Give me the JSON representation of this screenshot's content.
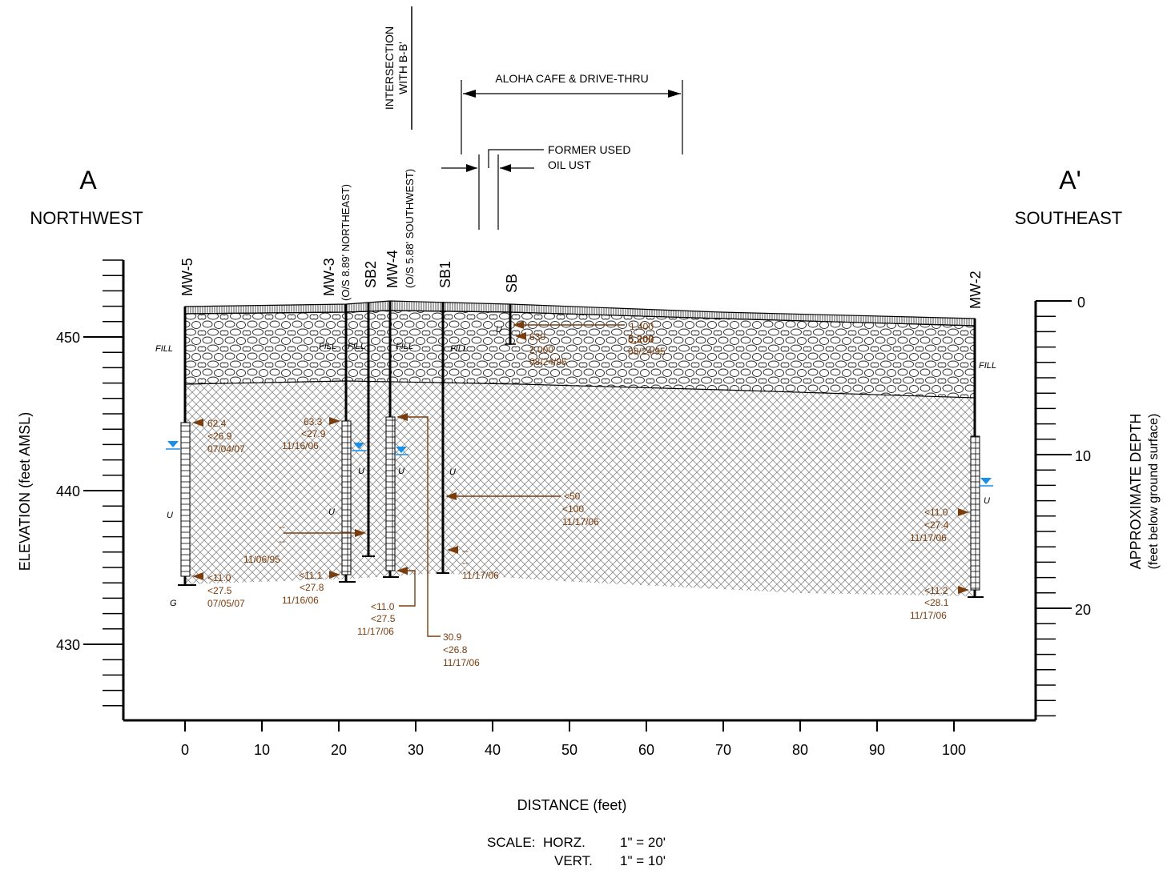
{
  "header": {
    "left_letter": "A",
    "left_direction": "NORTHWEST",
    "right_letter": "A'",
    "right_direction": "SOUTHEAST",
    "intersection_line1": "INTERSECTION",
    "intersection_line2": "WITH B-B'",
    "building_label": "ALOHA CAFE & DRIVE-THRU",
    "ust_line1": "FORMER USED",
    "ust_line2": "OIL UST"
  },
  "axes": {
    "left_label": "ELEVATION (feet AMSL)",
    "left_ticks": [
      "450",
      "440",
      "430"
    ],
    "right_label_line1": "APPROXIMATE DEPTH",
    "right_label_line2": "(feet below ground surface)",
    "right_ticks": [
      "0",
      "10",
      "20"
    ],
    "x_label": "DISTANCE (feet)",
    "x_ticks": [
      "0",
      "10",
      "20",
      "30",
      "40",
      "50",
      "60",
      "70",
      "80",
      "90",
      "100"
    ]
  },
  "scale": {
    "label": "SCALE:",
    "horz": "HORZ.",
    "horz_value": "1\" = 20'",
    "vert": "VERT.",
    "vert_value": "1\" = 10'"
  },
  "wells": {
    "mw5": "MW-5",
    "mw3": "MW-3",
    "mw3_offset": "(O/S 8.89' NORTHEAST)",
    "sb2": "SB2",
    "mw4": "MW-4",
    "mw4_offset": "(O/S 5.88' SOUTHWEST)",
    "sb1": "SB1",
    "sb": "SB",
    "mw2": "MW-2"
  },
  "units": {
    "fill": "FILL",
    "u": "U",
    "g": "G"
  },
  "samples": {
    "sb_a": [
      "1,400",
      "5,200",
      "08/24/95"
    ],
    "sb_b": [
      "630",
      "2,000",
      "08/24/95"
    ],
    "mw5_a": [
      "62.4",
      "<26.9",
      "07/04/07"
    ],
    "mw5_b": [
      "<11.0",
      "<27.5",
      "07/05/07"
    ],
    "mw3_a": [
      "63.3",
      "<27.9",
      "11/16/06"
    ],
    "mw3_b": [
      "<11.1",
      "<27.8",
      "11/16/06"
    ],
    "sb2_a": [
      "--",
      "--",
      "11/06/95"
    ],
    "mw4_a": [
      "30.9",
      "<26.8",
      "11/17/06"
    ],
    "mw4_b": [
      "<11.0",
      "<27.5",
      "11/17/06"
    ],
    "sb1_a": [
      "<50",
      "<100",
      "11/17/06"
    ],
    "sb1_b": [
      "--",
      "--",
      "11/17/06"
    ],
    "mw2_a": [
      "<11.0",
      "<27.4",
      "11/17/06"
    ],
    "mw2_b": [
      "<11.2",
      "<28.1",
      "11/17/06"
    ]
  },
  "colors": {
    "annotation": "#7a3d0e",
    "water": "#1a8fe8",
    "line": "#000000"
  }
}
